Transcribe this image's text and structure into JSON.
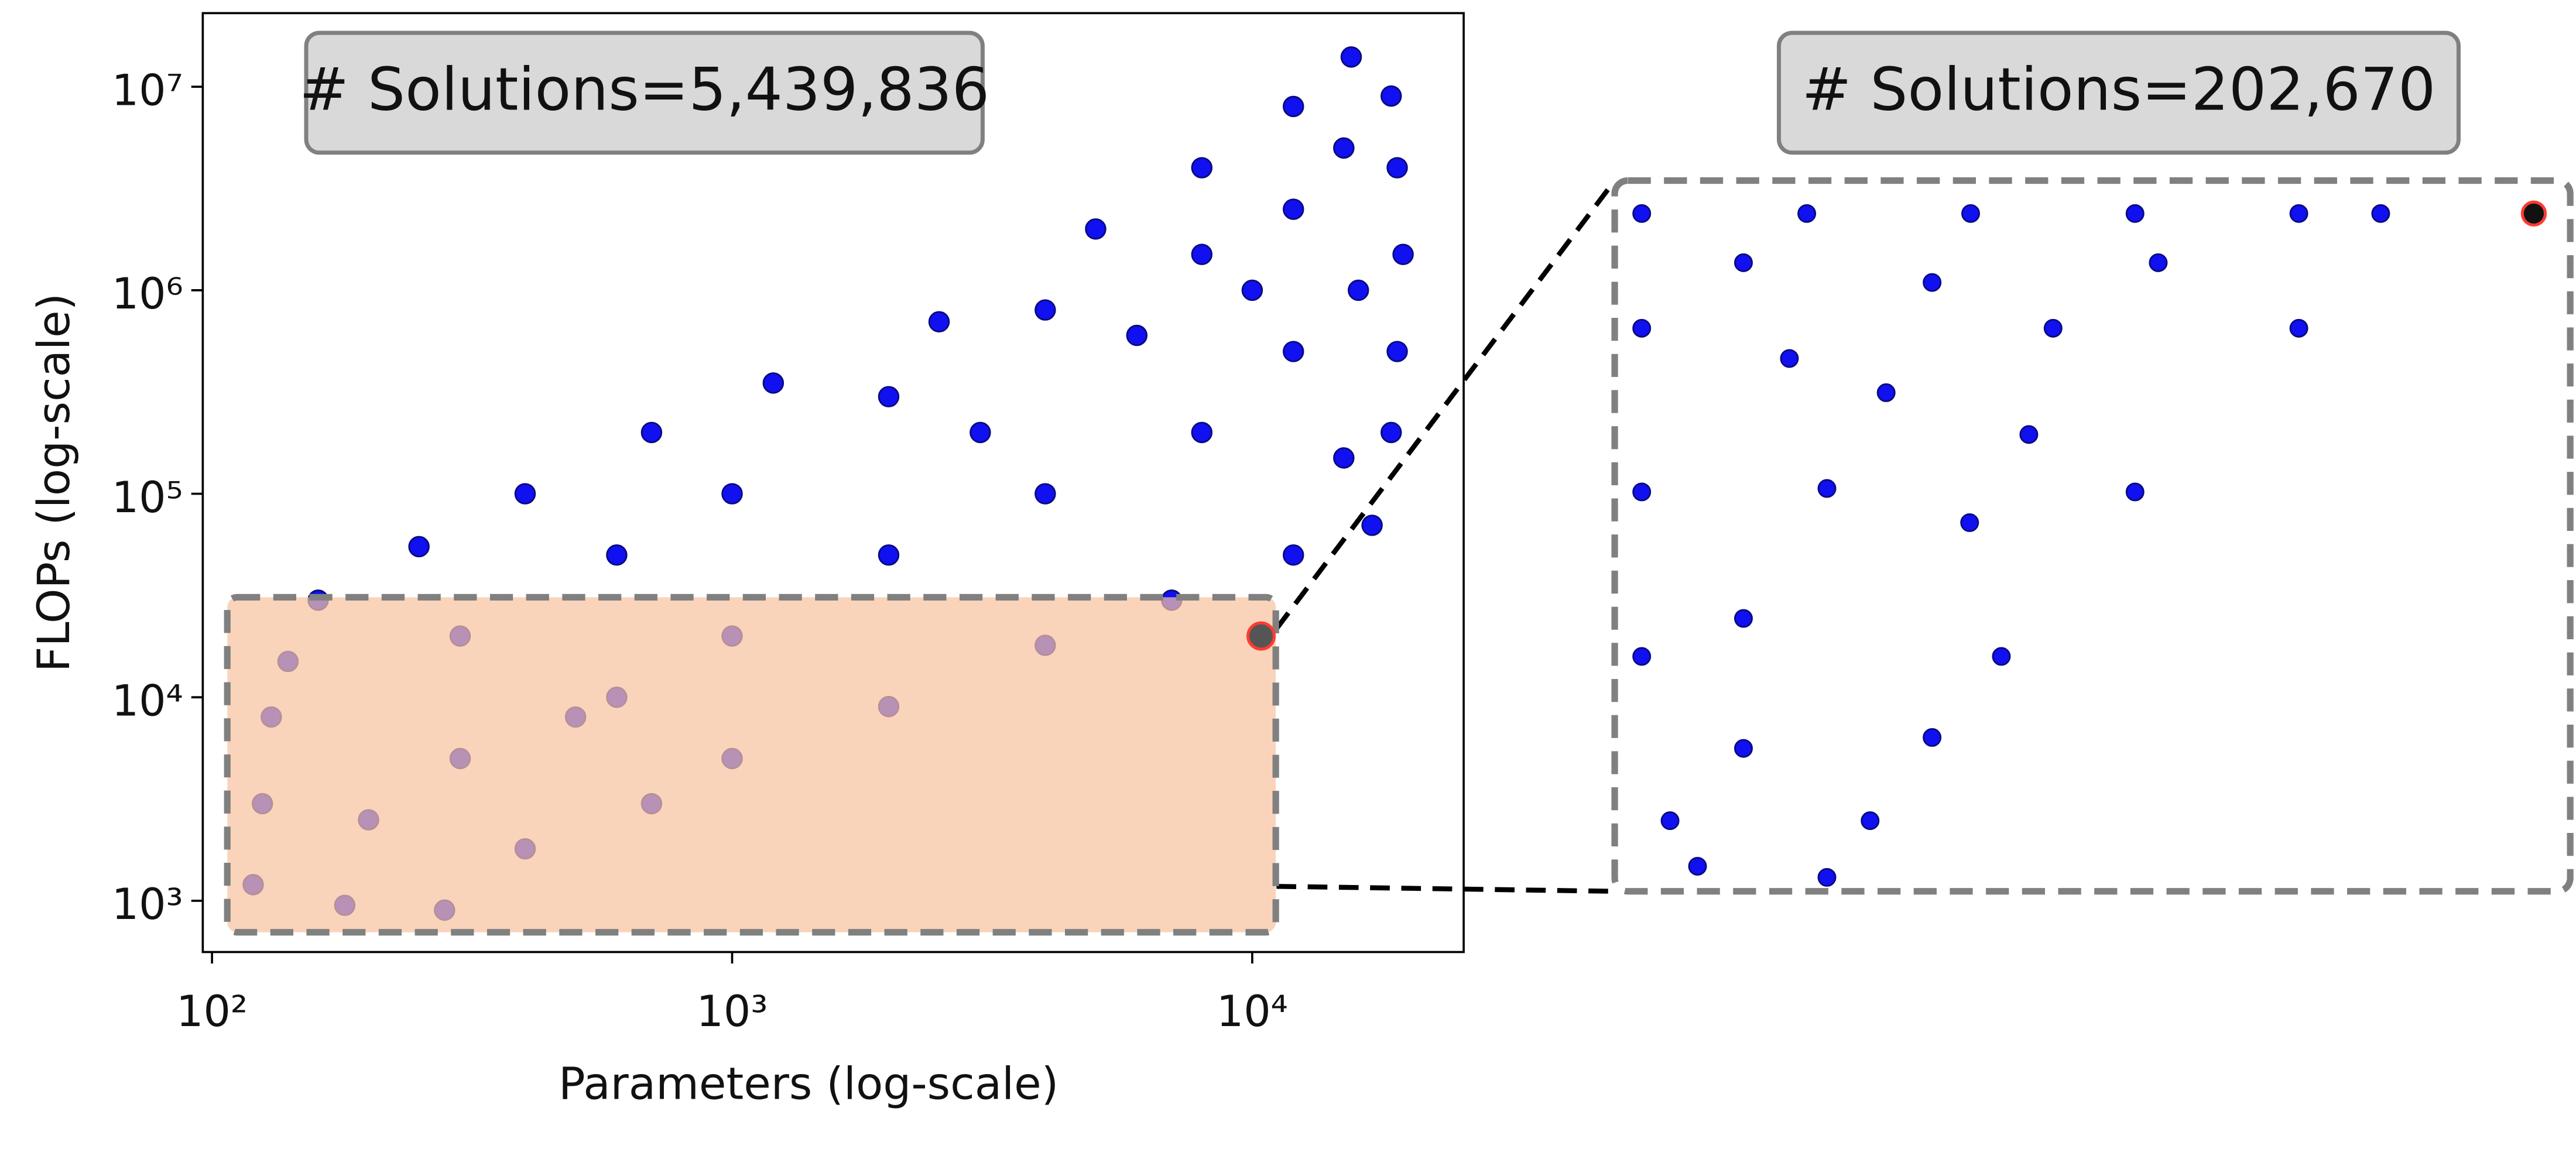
{
  "chart_data": [
    {
      "type": "scatter",
      "annotation": "# Solutions=5,439,836",
      "xlabel": "Parameters (log-scale)",
      "ylabel": "FLOPs (log-scale)",
      "xscale": "log",
      "yscale": "log",
      "xlim": [
        96,
        25500
      ],
      "ylim": [
        560,
        23000000
      ],
      "xticks": [
        {
          "value": 100,
          "label": "10²"
        },
        {
          "value": 1000,
          "label": "10³"
        },
        {
          "value": 10000,
          "label": "10⁴"
        }
      ],
      "yticks": [
        {
          "value": 1000,
          "label": "10³"
        },
        {
          "value": 10000,
          "label": "10⁴"
        },
        {
          "value": 100000,
          "label": "10⁵"
        },
        {
          "value": 1000000,
          "label": "10⁶"
        },
        {
          "value": 10000000,
          "label": "10⁷"
        }
      ],
      "series": [
        {
          "color": "#1010f0",
          "edgecolor": "#0a0a80",
          "x": [
            160,
            250,
            400,
            700,
            1200,
            2500,
            5000,
            8000,
            12000,
            15500,
            18500,
            19000,
            19500,
            19000,
            18500,
            17000,
            280,
            180,
            400,
            700,
            1000,
            2000,
            4000,
            7000,
            12000,
            120,
            125,
            130,
            140,
            300,
            300,
            600,
            600,
            1000,
            1000,
            2000,
            2000,
            4000,
            4000,
            8000,
            8000,
            12000,
            12000,
            15000,
            15000,
            200,
            500,
            3000,
            6000,
            10000,
            16000
          ],
          "y": [
            30000,
            55000,
            100000,
            200000,
            350000,
            700000,
            2000000,
            4000000,
            8000000,
            14000000,
            9000000,
            4000000,
            1500000,
            500000,
            200000,
            70000,
            900,
            950,
            1800,
            3000,
            5000,
            9000,
            18000,
            30000,
            50000,
            1200,
            3000,
            8000,
            15000,
            5000,
            20000,
            10000,
            50000,
            20000,
            100000,
            50000,
            300000,
            100000,
            800000,
            200000,
            1500000,
            500000,
            2500000,
            150000,
            5000000,
            2500,
            8000,
            200000,
            600000,
            1000000,
            1000000
          ]
        },
        {
          "color": "#555555",
          "edgecolor": "#ff3b2f",
          "x": [
            10400
          ],
          "y": [
            20000
          ]
        }
      ]
    },
    {
      "type": "scatter",
      "annotation": "# Solutions=202,670",
      "xscale": "log",
      "yscale": "log",
      "xlim": [
        107,
        11100
      ],
      "ylim": [
        700,
        31000
      ],
      "series": [
        {
          "color": "#1010f0",
          "edgecolor": "#0a0a80",
          "x": [
            122,
            272,
            603,
            1340,
            2970,
            4420,
            122,
            122,
            122,
            140,
            2970,
            1340,
            700,
            500,
            370,
            300,
            200,
            400,
            900,
            200,
            300,
            600,
            200,
            1500,
            250,
            500,
            800,
            160
          ],
          "y": [
            26000,
            26000,
            26000,
            26000,
            26000,
            26000,
            14100,
            5890,
            2450,
            1020,
            14100,
            5890,
            2450,
            1590,
            1020,
            754,
            20000,
            10000,
            14100,
            3000,
            6000,
            5000,
            1500,
            20000,
            12000,
            18000,
            8000,
            800
          ]
        },
        {
          "color": "#111111",
          "edgecolor": "#ff3b2f",
          "x": [
            9300
          ],
          "y": [
            26000
          ]
        }
      ]
    }
  ]
}
